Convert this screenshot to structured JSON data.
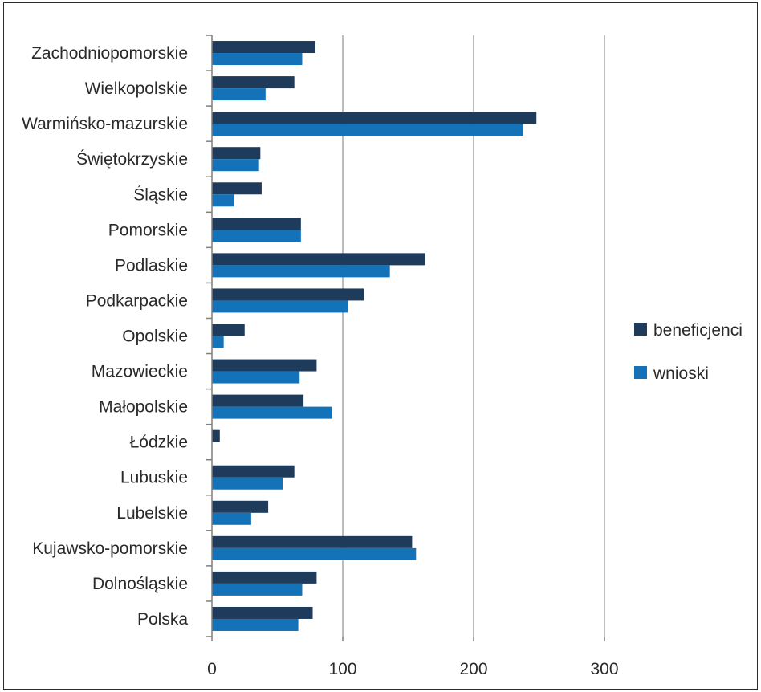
{
  "chart_data": {
    "type": "bar",
    "orientation": "horizontal",
    "categories": [
      "Zachodniopomorskie",
      "Wielkopolskie",
      "Warmińsko-mazurskie",
      "Świętokrzyskie",
      "Śląskie",
      "Pomorskie",
      "Podlaskie",
      "Podkarpackie",
      "Opolskie",
      "Mazowieckie",
      "Małopolskie",
      "Łódzkie",
      "Lubuskie",
      "Lubelskie",
      "Kujawsko-pomorskie",
      "Dolnośląskie",
      "Polska"
    ],
    "series": [
      {
        "name": "beneficjenci",
        "color": "#1f3b5c",
        "values": [
          79,
          63,
          248,
          37,
          38,
          68,
          163,
          116,
          25,
          80,
          70,
          6,
          63,
          43,
          153,
          80,
          77
        ]
      },
      {
        "name": "wnioski",
        "color": "#1472b8",
        "values": [
          69,
          41,
          238,
          36,
          17,
          68,
          136,
          104,
          9,
          67,
          92,
          0,
          54,
          30,
          156,
          69,
          66
        ]
      }
    ],
    "xlim": [
      0,
      300
    ],
    "xticks": [
      "0",
      "100",
      "200",
      "300"
    ],
    "grid": "vertical",
    "legend_position": "right",
    "title": "",
    "xlabel": "",
    "ylabel": ""
  }
}
